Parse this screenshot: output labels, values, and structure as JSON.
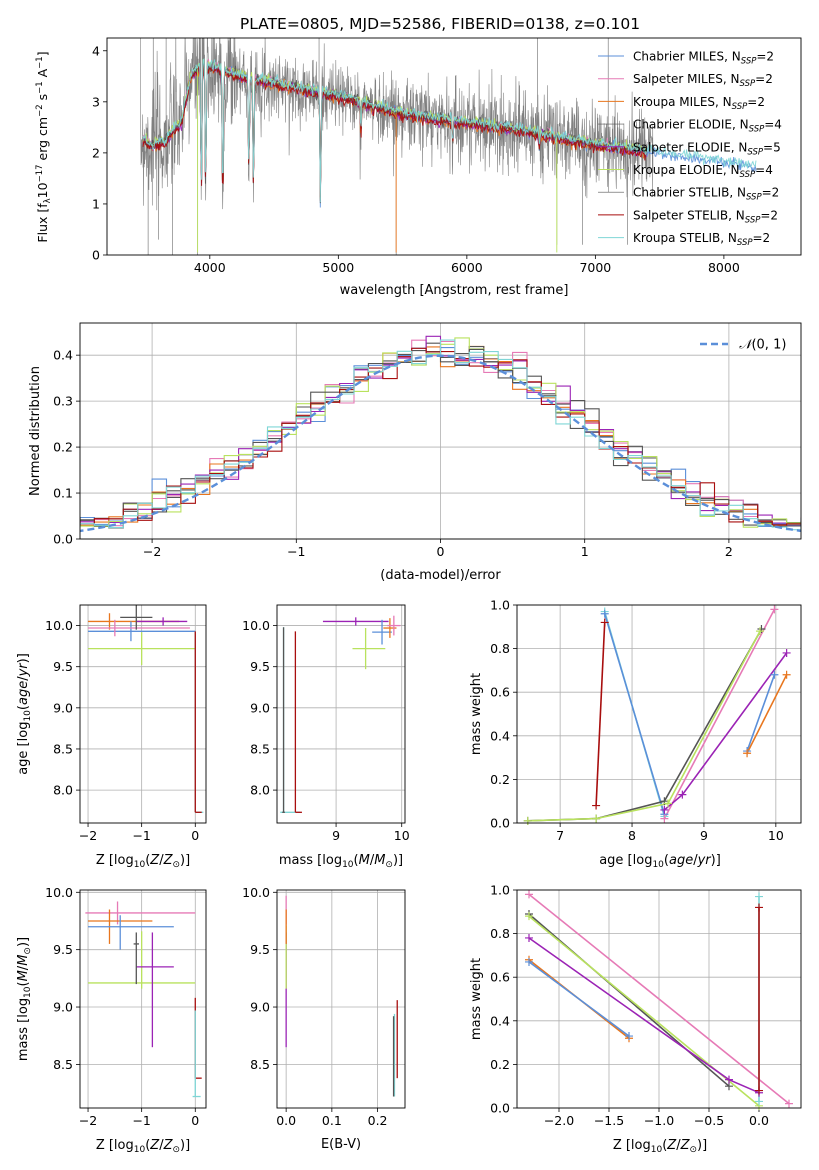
{
  "figure": {
    "title": "PLATE=0805, MJD=52586, FIBERID=0138, z=0.101"
  },
  "colors": {
    "chabrier_miles": "#5b8fd9",
    "salpeter_miles": "#e67ab6",
    "kroupa_miles": "#e8761e",
    "chabrier_elodie": "#555555",
    "salpeter_elodie": "#9b23b5",
    "kroupa_elodie": "#b9e25e",
    "chabrier_stelib": "#2d7a2d",
    "salpeter_stelib": "#a80e0e",
    "kroupa_stelib": "#7fd6d6",
    "data_gray": "#808080",
    "gauss": "#5b8fd9"
  },
  "chart_data": [
    {
      "type": "line",
      "panel": "spectrum",
      "xlabel": "wavelength [Angstrom, rest frame]",
      "ylabel": "Flux [f_λ 10^-17 erg cm^-2 s^-1 A^-1]",
      "xlim": [
        3200,
        8600
      ],
      "ylim": [
        0,
        4.25
      ],
      "xticks": [
        4000,
        5000,
        6000,
        7000,
        8000
      ],
      "yticks": [
        0,
        1,
        2,
        3,
        4
      ],
      "grid": false,
      "legend_position": "top-right",
      "series": [
        {
          "name": "Chabrier MILES, N_SSP=2",
          "key": "chabrier_miles",
          "lw": 1
        },
        {
          "name": "Salpeter MILES, N_SSP=2",
          "key": "salpeter_miles",
          "lw": 1
        },
        {
          "name": "Kroupa MILES, N_SSP=2",
          "key": "kroupa_miles",
          "lw": 1
        },
        {
          "name": "Chabrier ELODIE, N_SSP=4",
          "key": "chabrier_elodie",
          "lw": 0.6
        },
        {
          "name": "Salpeter ELODIE, N_SSP=5",
          "key": "salpeter_elodie",
          "lw": 1
        },
        {
          "name": "Kroupa ELODIE, N_SSP=4",
          "key": "kroupa_elodie",
          "lw": 1
        },
        {
          "name": "Chabrier STELIB, N_SSP=2",
          "key": "chabrier_elodie",
          "lw": 0.6
        },
        {
          "name": "Salpeter STELIB, N_SSP=2",
          "key": "salpeter_stelib",
          "lw": 1
        },
        {
          "name": "Kroupa STELIB, N_SSP=2",
          "key": "kroupa_stelib",
          "lw": 1
        }
      ],
      "model_continuum": [
        [
          3480,
          2.25
        ],
        [
          3550,
          2.15
        ],
        [
          3650,
          2.2
        ],
        [
          3700,
          2.4
        ],
        [
          3780,
          2.6
        ],
        [
          3850,
          3.5
        ],
        [
          3950,
          3.75
        ],
        [
          4100,
          3.6
        ],
        [
          4300,
          3.45
        ],
        [
          4500,
          3.35
        ],
        [
          4700,
          3.25
        ],
        [
          4900,
          3.15
        ],
        [
          5100,
          3.05
        ],
        [
          5300,
          2.9
        ],
        [
          5500,
          2.75
        ],
        [
          5800,
          2.65
        ],
        [
          6100,
          2.55
        ],
        [
          6400,
          2.45
        ],
        [
          6700,
          2.3
        ],
        [
          7000,
          2.15
        ],
        [
          7300,
          2.05
        ],
        [
          7600,
          1.95
        ],
        [
          7900,
          1.85
        ],
        [
          8250,
          1.72
        ]
      ],
      "absorption_features": [
        [
          3934,
          1.2
        ],
        [
          3968,
          1.3
        ],
        [
          4101,
          0.9
        ],
        [
          4304,
          1.6
        ],
        [
          4340,
          1.2
        ],
        [
          4861,
          1.0
        ],
        [
          5175,
          2.4
        ],
        [
          5270,
          2.8
        ],
        [
          5890,
          2.2
        ],
        [
          6563,
          2.1
        ]
      ],
      "outlier_spikes": [
        [
          3520,
          0.0
        ],
        [
          3560,
          4.25
        ],
        [
          3600,
          0.3
        ],
        [
          3660,
          4.25
        ],
        [
          3710,
          0.0
        ],
        [
          3905,
          0.0
        ],
        [
          3940,
          4.25
        ],
        [
          4850,
          4.25
        ],
        [
          5450,
          0.0
        ],
        [
          6550,
          4.25
        ],
        [
          6700,
          0.2
        ],
        [
          6900,
          0.2
        ],
        [
          7100,
          4.25
        ],
        [
          7250,
          0.2
        ]
      ],
      "data_range": [
        3460,
        7450
      ],
      "data_noise": 1.1
    },
    {
      "type": "bar",
      "panel": "residual_histogram",
      "xlabel": "(data-model)/error",
      "ylabel": "Normed distribution",
      "xlim": [
        -2.5,
        2.5
      ],
      "ylim": [
        0,
        0.47
      ],
      "xticks": [
        -2,
        -1,
        0,
        1,
        2
      ],
      "yticks": [
        0.0,
        0.1,
        0.2,
        0.3,
        0.4
      ],
      "grid": true,
      "bin_width": 0.1,
      "legend": {
        "label": "N(0,1)",
        "position": "top-right"
      },
      "gauss": {
        "mu": 0,
        "sigma": 1
      },
      "series_keys": [
        "chabrier_miles",
        "salpeter_miles",
        "kroupa_miles",
        "chabrier_elodie",
        "salpeter_elodie",
        "kroupa_elodie",
        "chabrier_elodie",
        "salpeter_stelib",
        "kroupa_stelib"
      ]
    },
    {
      "type": "scatter",
      "panel": "age_vs_Z",
      "xlabel": "Z [log10(Z/Z⊙)]",
      "ylabel": "age [log10(age/yr)]",
      "xlim": [
        -2.15,
        0.2
      ],
      "ylim": [
        7.6,
        10.25
      ],
      "xticks": [
        -2,
        -1,
        0
      ],
      "yticks": [
        8.0,
        8.5,
        9.0,
        9.5,
        10.0
      ],
      "grid": true,
      "points": [
        {
          "key": "kroupa_miles",
          "x": -1.6,
          "y": 10.05,
          "xerr": [
            0.4,
            1.3
          ],
          "yerr": [
            0.1,
            0.1
          ]
        },
        {
          "key": "chabrier_miles",
          "x": -1.2,
          "y": 9.93,
          "xerr": [
            0.8,
            1.2
          ],
          "yerr": [
            0.12,
            0.12
          ]
        },
        {
          "key": "salpeter_miles",
          "x": -1.5,
          "y": 9.97,
          "xerr": [
            0.5,
            1.4
          ],
          "yerr": [
            0.1,
            0.1
          ]
        },
        {
          "key": "salpeter_elodie",
          "x": -0.6,
          "y": 10.05,
          "xerr": [
            0.5,
            0.45
          ],
          "yerr": [
            0.05,
            0.05
          ]
        },
        {
          "key": "chabrier_elodie",
          "x": -1.1,
          "y": 10.1,
          "xerr": [
            0.3,
            0.3
          ],
          "yerr": [
            0.15,
            0.15
          ]
        },
        {
          "key": "kroupa_elodie",
          "x": -1.0,
          "y": 9.72,
          "xerr": [
            1.0,
            1.0
          ],
          "yerr": [
            0.2,
            0.2
          ]
        },
        {
          "key": "kroupa_stelib",
          "x": 0.0,
          "y": 7.73,
          "xerr": [
            0.0,
            0.15
          ],
          "yerr": [
            0.0,
            2.2
          ]
        },
        {
          "key": "salpeter_stelib",
          "x": 0.0,
          "y": 7.73,
          "xerr": [
            0.0,
            0.12
          ],
          "yerr": [
            0.0,
            2.2
          ]
        }
      ]
    },
    {
      "type": "scatter",
      "panel": "age_vs_mass",
      "xlabel": "mass [log10(M/M⊙)]",
      "ylabel": "",
      "xlim": [
        8.1,
        10.05
      ],
      "ylim": [
        7.6,
        10.25
      ],
      "xticks": [
        9,
        10
      ],
      "yticks": [
        8.0,
        8.5,
        9.0,
        9.5,
        10.0
      ],
      "grid": true,
      "points": [
        {
          "key": "salpeter_elodie",
          "x": 9.3,
          "y": 10.05,
          "xerr": [
            0.5,
            0.5
          ],
          "yerr": [
            0.05,
            0.05
          ]
        },
        {
          "key": "kroupa_elodie",
          "x": 9.45,
          "y": 9.72,
          "xerr": [
            0.2,
            0.3
          ],
          "yerr": [
            0.25,
            0.25
          ]
        },
        {
          "key": "chabrier_miles",
          "x": 9.7,
          "y": 9.92,
          "xerr": [
            0.15,
            0.15
          ],
          "yerr": [
            0.15,
            0.15
          ]
        },
        {
          "key": "kroupa_miles",
          "x": 9.82,
          "y": 9.97,
          "xerr": [
            0.1,
            0.1
          ],
          "yerr": [
            0.12,
            0.12
          ]
        },
        {
          "key": "salpeter_miles",
          "x": 9.88,
          "y": 10.0,
          "xerr": [
            0.1,
            0.1
          ],
          "yerr": [
            0.12,
            0.12
          ]
        },
        {
          "key": "kroupa_stelib",
          "x": 8.2,
          "y": 7.73,
          "xerr": [
            0.05,
            0.25
          ],
          "yerr": [
            0.0,
            2.25
          ]
        },
        {
          "key": "salpeter_stelib",
          "x": 8.38,
          "y": 7.73,
          "xerr": [
            0.0,
            0.1
          ],
          "yerr": [
            0.0,
            2.2
          ]
        },
        {
          "key": "chabrier_elodie",
          "x": 8.2,
          "y": 7.73,
          "xerr": [
            0.02,
            0.02
          ],
          "yerr": [
            0.0,
            2.25
          ]
        }
      ]
    },
    {
      "type": "line",
      "panel": "massweight_vs_age",
      "xlabel": "age [log10(age/yr)]",
      "ylabel": "mass weight",
      "xlim": [
        6.4,
        10.35
      ],
      "ylim": [
        0,
        1
      ],
      "xticks": [
        7,
        8,
        9,
        10
      ],
      "yticks": [
        0.0,
        0.2,
        0.4,
        0.6,
        0.8,
        1.0
      ],
      "grid": true,
      "series": [
        {
          "key": "salpeter_stelib",
          "points": [
            [
              7.5,
              0.08
            ],
            [
              7.62,
              0.92
            ]
          ]
        },
        {
          "key": "kroupa_stelib",
          "points": [
            [
              7.62,
              0.97
            ],
            [
              8.45,
              0.03
            ]
          ]
        },
        {
          "key": "chabrier_miles",
          "points": [
            [
              7.62,
              0.96
            ],
            [
              8.45,
              0.04
            ]
          ]
        },
        {
          "key": "salpeter_miles",
          "points": [
            [
              8.45,
              0.02
            ],
            [
              9.98,
              0.98
            ]
          ]
        },
        {
          "key": "chabrier_elodie",
          "points": [
            [
              6.55,
              0.01
            ],
            [
              7.5,
              0.02
            ],
            [
              8.45,
              0.1
            ],
            [
              9.8,
              0.89
            ]
          ]
        },
        {
          "key": "kroupa_elodie",
          "points": [
            [
              6.55,
              0.01
            ],
            [
              7.5,
              0.02
            ],
            [
              8.5,
              0.09
            ],
            [
              9.78,
              0.88
            ]
          ]
        },
        {
          "key": "salpeter_elodie",
          "points": [
            [
              8.45,
              0.06
            ],
            [
              8.7,
              0.13
            ],
            [
              10.15,
              0.78
            ]
          ]
        },
        {
          "key": "chabrier_miles",
          "points": [
            [
              9.6,
              0.33
            ],
            [
              9.98,
              0.68
            ]
          ]
        },
        {
          "key": "kroupa_miles",
          "points": [
            [
              9.6,
              0.32
            ],
            [
              10.15,
              0.68
            ]
          ]
        }
      ]
    },
    {
      "type": "scatter",
      "panel": "mass_vs_Z",
      "xlabel": "Z [log10(Z/Z⊙)]",
      "ylabel": "mass [log10(M/M⊙)]",
      "xlim": [
        -2.15,
        0.2
      ],
      "ylim": [
        8.12,
        10.02
      ],
      "xticks": [
        -2,
        -1,
        0
      ],
      "yticks": [
        8.5,
        9.0,
        9.5,
        10.0
      ],
      "grid": true,
      "points": [
        {
          "key": "salpeter_miles",
          "x": -1.45,
          "y": 9.82,
          "xerr": [
            0.6,
            1.45
          ],
          "yerr": [
            0.1,
            0.1
          ]
        },
        {
          "key": "kroupa_miles",
          "x": -1.6,
          "y": 9.75,
          "xerr": [
            0.4,
            0.8
          ],
          "yerr": [
            0.2,
            0.1
          ]
        },
        {
          "key": "chabrier_miles",
          "x": -1.4,
          "y": 9.7,
          "xerr": [
            0.6,
            1.0
          ],
          "yerr": [
            0.2,
            0.1
          ]
        },
        {
          "key": "kroupa_elodie",
          "x": -1.0,
          "y": 9.21,
          "xerr": [
            1.0,
            1.0
          ],
          "yerr": [
            0.05,
            0.45
          ]
        },
        {
          "key": "salpeter_elodie",
          "x": -0.8,
          "y": 9.35,
          "xerr": [
            0.3,
            0.4
          ],
          "yerr": [
            0.7,
            0.3
          ]
        },
        {
          "key": "salpeter_stelib",
          "x": 0.0,
          "y": 8.38,
          "xerr": [
            0.0,
            0.12
          ],
          "yerr": [
            0.0,
            0.7
          ]
        },
        {
          "key": "kroupa_stelib",
          "x": 0.0,
          "y": 8.22,
          "xerr": [
            0.05,
            0.1
          ],
          "yerr": [
            0.0,
            0.75
          ]
        },
        {
          "key": "chabrier_elodie",
          "x": -1.1,
          "y": 9.55,
          "xerr": [
            0.05,
            0.05
          ],
          "yerr": [
            0.35,
            0.1
          ]
        }
      ]
    },
    {
      "type": "scatter",
      "panel": "mass_vs_EBV",
      "xlabel": "E(B-V)",
      "ylabel": "",
      "xlim": [
        -0.02,
        0.26
      ],
      "ylim": [
        8.12,
        10.02
      ],
      "xticks": [
        0.0,
        0.1,
        0.2
      ],
      "yticks": [
        8.5,
        9.0,
        9.5,
        10.0
      ],
      "grid": true,
      "points": [
        {
          "key": "salpeter_elodie",
          "x": 0.0,
          "y": 9.35,
          "xerr": [
            0,
            0
          ],
          "yerr": [
            0.7,
            0.3
          ]
        },
        {
          "key": "kroupa_elodie",
          "x": 0.0,
          "y": 9.21,
          "xerr": [
            0,
            0
          ],
          "yerr": [
            0.05,
            0.5
          ]
        },
        {
          "key": "salpeter_miles",
          "x": 0.0,
          "y": 9.82,
          "xerr": [
            0,
            0
          ],
          "yerr": [
            0.1,
            0.15
          ]
        },
        {
          "key": "kroupa_miles",
          "x": 0.0,
          "y": 9.75,
          "xerr": [
            0,
            0
          ],
          "yerr": [
            0.2,
            0.1
          ]
        },
        {
          "key": "salpeter_stelib",
          "x": 0.243,
          "y": 8.38,
          "xerr": [
            0,
            0
          ],
          "yerr": [
            0.0,
            0.68
          ]
        },
        {
          "key": "kroupa_stelib",
          "x": 0.237,
          "y": 8.22,
          "xerr": [
            0,
            0
          ],
          "yerr": [
            0.0,
            0.72
          ]
        },
        {
          "key": "chabrier_elodie",
          "x": 0.235,
          "y": 8.22,
          "xerr": [
            0,
            0
          ],
          "yerr": [
            0.0,
            0.7
          ]
        }
      ]
    },
    {
      "type": "line",
      "panel": "massweight_vs_Z",
      "xlabel": "Z [log10(Z/Z⊙)]",
      "ylabel": "mass weight",
      "xlim": [
        -2.42,
        0.42
      ],
      "ylim": [
        0,
        1
      ],
      "xticks": [
        -2.0,
        -1.5,
        -1.0,
        -0.5,
        0.0
      ],
      "yticks": [
        0.0,
        0.2,
        0.4,
        0.6,
        0.8,
        1.0
      ],
      "grid": true,
      "series": [
        {
          "key": "salpeter_miles",
          "points": [
            [
              -2.3,
              0.98
            ],
            [
              0.3,
              0.02
            ]
          ]
        },
        {
          "key": "chabrier_elodie",
          "points": [
            [
              -2.3,
              0.89
            ],
            [
              -0.3,
              0.1
            ]
          ]
        },
        {
          "key": "kroupa_elodie",
          "points": [
            [
              -2.3,
              0.88
            ],
            [
              0.0,
              0.01
            ]
          ]
        },
        {
          "key": "salpeter_elodie",
          "points": [
            [
              -2.3,
              0.78
            ],
            [
              -0.3,
              0.13
            ],
            [
              0.0,
              0.07
            ]
          ]
        },
        {
          "key": "kroupa_miles",
          "points": [
            [
              -2.3,
              0.68
            ],
            [
              -1.3,
              0.32
            ]
          ]
        },
        {
          "key": "chabrier_miles",
          "points": [
            [
              -2.3,
              0.67
            ],
            [
              -1.3,
              0.33
            ]
          ]
        },
        {
          "key": "kroupa_stelib",
          "points": [
            [
              0.0,
              0.97
            ],
            [
              0.0,
              0.03
            ]
          ]
        },
        {
          "key": "salpeter_stelib",
          "points": [
            [
              0.0,
              0.92
            ],
            [
              0.0,
              0.08
            ]
          ]
        }
      ]
    }
  ]
}
